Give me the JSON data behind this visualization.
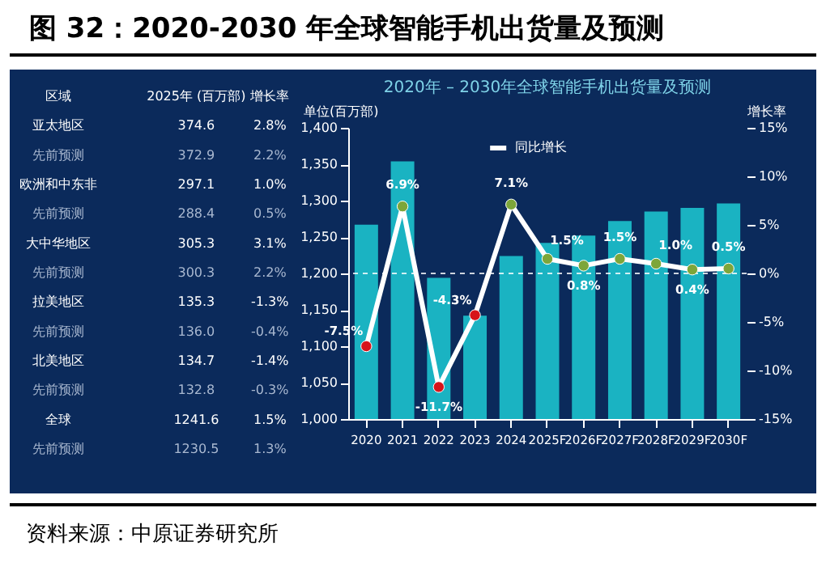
{
  "chart_data": [
    {
      "type": "other",
      "annotations": [
        "区域",
        "2025年 (百万部)",
        "增长率",
        "亚太地区",
        "374.6",
        "2.8%",
        "先前预测",
        "372.9",
        "2.2%",
        "欧洲和中东非",
        "297.1",
        "1.0%",
        "先前预测",
        "288.4",
        "0.5%",
        "大中华地区",
        "305.3",
        "3.1%",
        "先前预测",
        "300.3",
        "2.2%",
        "拉美地区",
        "135.3",
        "-1.3%",
        "先前预测",
        "136.0",
        "-0.4%",
        "北美地区",
        "134.7",
        "-1.4%",
        "先前预测",
        "132.8",
        "-0.3%",
        "全球",
        "1241.6",
        "1.5%",
        "先前预测",
        "1230.5",
        "1.3%"
      ]
    },
    {
      "type": "bar",
      "title": "图 32：2020-2030 年全球智能手机出货量及预测",
      "subtitle": "2020年 – 2030年全球智能手机出货量及预测",
      "ylabel": "单位(百万部)",
      "y2label": "增长率",
      "categories": [
        "2020",
        "2021",
        "2022",
        "2023",
        "2024",
        "2025F",
        "2026F",
        "2027F",
        "2028F",
        "2029F",
        "2030F"
      ],
      "series": [
        {
          "type": "bar",
          "color": "#1ab3c2",
          "values": [
            1267,
            1354,
            1194,
            1142,
            1224,
            1242,
            1252,
            1272,
            1285,
            1290,
            1296
          ]
        },
        {
          "name": "同比增长",
          "type": "line",
          "axis": "y2",
          "color": "#ffffff",
          "colors": [
            "#d7141a",
            "#7da63a",
            "#d7141a",
            "#d7141a",
            "#7da63a",
            "#7da63a",
            "#7da63a",
            "#7da63a",
            "#7da63a",
            "#7da63a",
            "#7da63a"
          ],
          "values": [
            -7.5,
            6.9,
            -11.7,
            -4.3,
            7.1,
            1.5,
            0.8,
            1.5,
            1.0,
            0.4,
            0.5
          ],
          "value_labels": [
            "-7.5%",
            "6.9%",
            "-11.7%",
            "-4.3%",
            "7.1%",
            "1.5%",
            "0.8%",
            "1.5%",
            "1.0%",
            "0.4%",
            "0.5%"
          ]
        }
      ],
      "ylim": [
        1000,
        1400
      ],
      "yticks": [
        {
          "value": 1000,
          "label": "1,000"
        },
        {
          "value": 1050,
          "label": "1,050"
        },
        {
          "value": 1100,
          "label": "1,100"
        },
        {
          "value": 1150,
          "label": "1,150"
        },
        {
          "value": 1200,
          "label": "1,200"
        },
        {
          "value": 1250,
          "label": "1,250"
        },
        {
          "value": 1300,
          "label": "1,300"
        },
        {
          "value": 1350,
          "label": "1,350"
        },
        {
          "value": 1400,
          "label": "1,400"
        }
      ],
      "y2lim": [
        -15,
        15
      ],
      "y2ticks": [
        {
          "value": -15,
          "label": "-15%"
        },
        {
          "value": -10,
          "label": "-10%"
        },
        {
          "value": -5,
          "label": "-5%"
        },
        {
          "value": 0,
          "label": "0%"
        },
        {
          "value": 5,
          "label": "5%"
        },
        {
          "value": 10,
          "label": "10%"
        },
        {
          "value": 15,
          "label": "15%"
        }
      ],
      "ref_lines": [
        {
          "axis": "y2",
          "value": 0,
          "color": "#ffffff",
          "line_style": "dashed"
        }
      ],
      "legend": "top",
      "marker": "circle",
      "annotations": [
        "资料来源：中原证券研究所"
      ]
    }
  ]
}
